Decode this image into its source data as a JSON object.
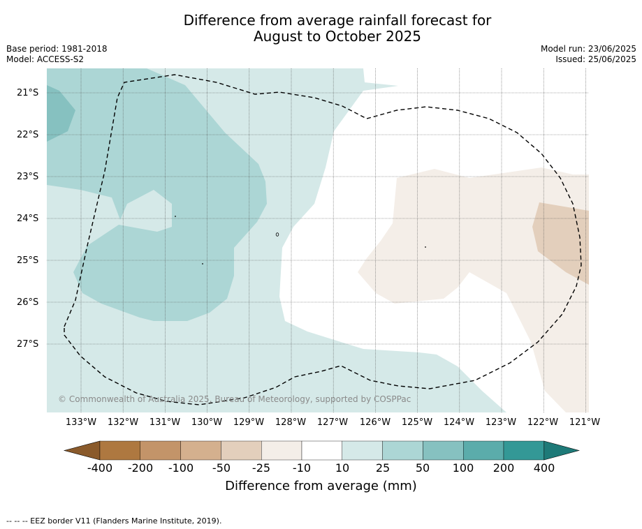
{
  "title_line1": "Difference from average rainfall forecast for",
  "title_line2": "August to October 2025",
  "meta_left": {
    "base_period": "Base period: 1981-2018",
    "model": "Model: ACCESS-S2"
  },
  "meta_right": {
    "model_run": "Model run: 23/06/2025",
    "issued": "Issued: 25/06/2025"
  },
  "map": {
    "lat_labels": [
      "21°S",
      "22°S",
      "23°S",
      "24°S",
      "25°S",
      "26°S",
      "27°S"
    ],
    "lon_labels": [
      "133°W",
      "132°W",
      "131°W",
      "130°W",
      "129°W",
      "128°W",
      "127°W",
      "126°W",
      "125°W",
      "124°W",
      "123°W",
      "122°W",
      "121°W"
    ],
    "copyright": "© Commonwealth of Australia 2025, Bureau of Meteorology, supported by COSPPac",
    "eez_line_color": "#000000"
  },
  "colorbar": {
    "ticks": [
      "-400",
      "-200",
      "-100",
      "-50",
      "-25",
      "-10",
      "10",
      "25",
      "50",
      "100",
      "200",
      "400"
    ],
    "colors": [
      "#8a5a2b",
      "#ae7840",
      "#c39469",
      "#d4b08e",
      "#e3cfbc",
      "#f4eee8",
      "#ffffff",
      "#d5e9e8",
      "#acd6d5",
      "#86c1c0",
      "#5bacab",
      "#339896",
      "#1e7a78"
    ],
    "label": "Difference from average (mm)"
  },
  "footnote": "-- -- -- EEZ border V11 (Flanders Marine Institute, 2019)."
}
